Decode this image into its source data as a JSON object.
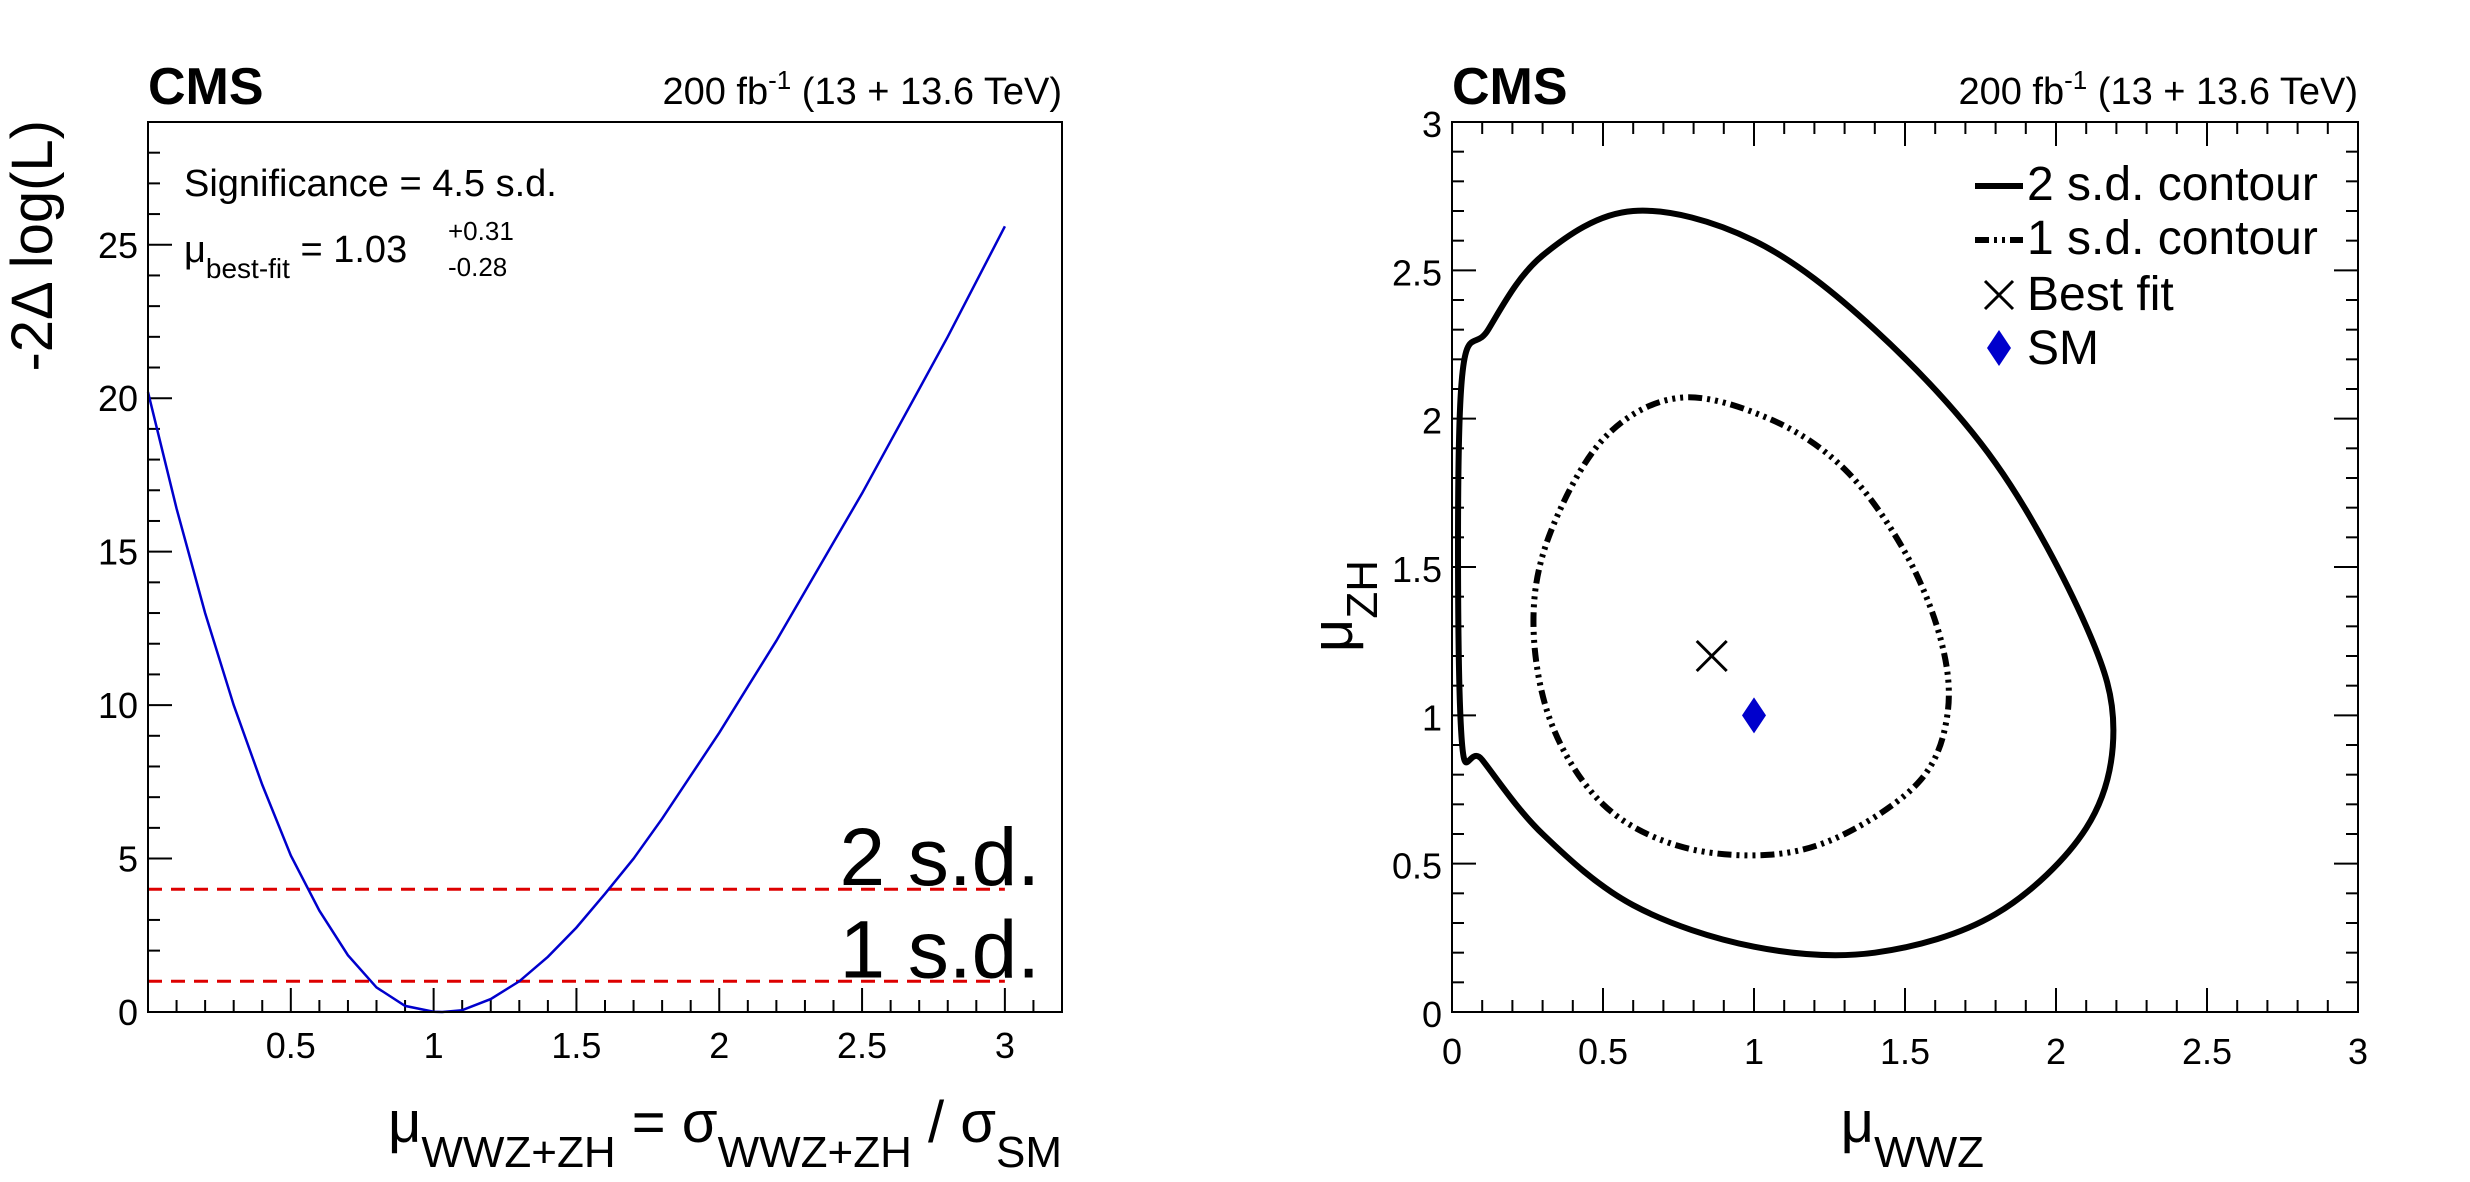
{
  "chart_data": [
    {
      "type": "line",
      "panel": "left",
      "header": {
        "experiment": "CMS",
        "lumi": "200 fb",
        "lumi_exp": "-1",
        "energy": " (13 + 13.6 TeV)"
      },
      "ylabel": "-2Δ log(L)",
      "xlabel": {
        "mu": "μ",
        "mu_sub": "WWZ+ZH",
        "eq": " = σ",
        "sig_sub": "WWZ+ZH",
        "slash": " / σ",
        "sm_sub": "SM"
      },
      "xlim": [
        0,
        3.2
      ],
      "ylim": [
        0,
        29
      ],
      "xticks": [
        "0.5",
        "1",
        "1.5",
        "2",
        "2.5",
        "3"
      ],
      "yticks": [
        "0",
        "5",
        "10",
        "15",
        "20",
        "25"
      ],
      "annotations": {
        "significance": "Significance = 4.5 s.d.",
        "mu_label": "μ",
        "mu_sub": "best-fit",
        "mu_value": " = 1.03",
        "err_up": "+0.31",
        "err_down": "-0.28"
      },
      "series": [
        {
          "color": "#0000cc",
          "x": [
            0.0,
            0.1,
            0.2,
            0.3,
            0.4,
            0.5,
            0.6,
            0.7,
            0.8,
            0.9,
            1.0,
            1.03,
            1.1,
            1.2,
            1.3,
            1.4,
            1.5,
            1.6,
            1.7,
            1.8,
            1.9,
            2.0,
            2.1,
            2.2,
            2.3,
            2.4,
            2.5,
            2.6,
            2.7,
            2.8,
            2.9,
            3.0
          ],
          "y": [
            20.2,
            16.4,
            13.0,
            10.0,
            7.4,
            5.1,
            3.3,
            1.85,
            0.8,
            0.2,
            0.01,
            0.0,
            0.06,
            0.42,
            1.0,
            1.8,
            2.75,
            3.85,
            5.0,
            6.3,
            7.7,
            9.1,
            10.6,
            12.1,
            13.7,
            15.3,
            16.9,
            18.6,
            20.3,
            22.0,
            23.8,
            25.6
          ]
        }
      ],
      "thresholds": [
        {
          "label": "2 s.d.",
          "y": 4,
          "color": "#dd0000"
        },
        {
          "label": "1 s.d.",
          "y": 1,
          "color": "#dd0000"
        }
      ]
    },
    {
      "type": "contour",
      "panel": "right",
      "header": {
        "experiment": "CMS",
        "lumi": "200 fb",
        "lumi_exp": "-1",
        "energy": " (13 + 13.6 TeV)"
      },
      "ylabel": {
        "mu": "μ",
        "sub": "ZH"
      },
      "xlabel": {
        "mu": "μ",
        "sub": "WWZ"
      },
      "xlim": [
        0,
        3
      ],
      "ylim": [
        0,
        3
      ],
      "xticks": [
        "0",
        "0.5",
        "1",
        "1.5",
        "2",
        "2.5",
        "3"
      ],
      "yticks": [
        "0",
        "0.5",
        "1",
        "1.5",
        "2",
        "2.5",
        "3"
      ],
      "contours": [
        {
          "name": "2 s.d. contour",
          "x": [
            0.03,
            0.03,
            0.12,
            0.3,
            0.6,
            1.0,
            1.4,
            1.8,
            2.1,
            2.19,
            2.1,
            1.8,
            1.4,
            1.0,
            0.6,
            0.3,
            0.1,
            0.03
          ],
          "y": [
            0.95,
            2.1,
            2.3,
            2.55,
            2.7,
            2.6,
            2.3,
            1.85,
            1.3,
            0.95,
            0.62,
            0.33,
            0.2,
            0.22,
            0.36,
            0.6,
            0.85,
            0.95
          ]
        },
        {
          "name": "1 s.d. contour",
          "x": [
            0.27,
            0.32,
            0.5,
            0.75,
            1.05,
            1.3,
            1.5,
            1.62,
            1.64,
            1.55,
            1.3,
            1.05,
            0.75,
            0.5,
            0.33,
            0.27
          ],
          "y": [
            1.3,
            1.6,
            1.93,
            2.07,
            2.0,
            1.83,
            1.55,
            1.25,
            1.0,
            0.78,
            0.6,
            0.53,
            0.56,
            0.7,
            0.97,
            1.3
          ]
        }
      ],
      "best_fit": {
        "name": "Best fit",
        "x": 0.86,
        "y": 1.2
      },
      "sm": {
        "name": "SM",
        "x": 1.0,
        "y": 1.0,
        "color": "#0000cc"
      }
    }
  ]
}
